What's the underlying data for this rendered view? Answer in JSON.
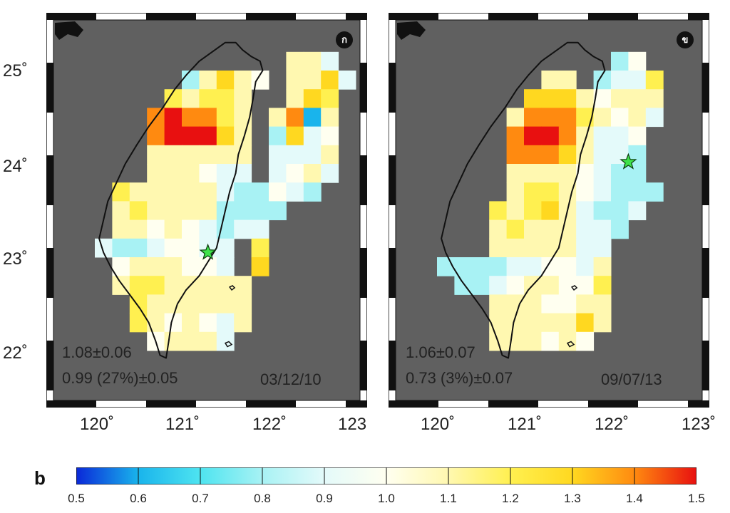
{
  "panels": [
    {
      "id": "a",
      "badge": "ก",
      "stat1": "1.08±0.06",
      "stat2": "0.99 (27%)±0.05",
      "date": "03/12/10",
      "epicenter": {
        "lon": 121.3,
        "lat": 23.05
      },
      "x_ticks": [
        "120˚",
        "121˚",
        "122˚",
        "123"
      ]
    },
    {
      "id": "b",
      "badge": "ข",
      "stat1": "1.06±0.07",
      "stat2": "0.73 (3%)±0.07",
      "date": "09/07/13",
      "epicenter": {
        "lon": 122.2,
        "lat": 24.02
      },
      "x_ticks": [
        "120˚",
        "121˚",
        "122˚",
        "123˚"
      ]
    }
  ],
  "y_ticks": [
    "25˚",
    "24˚",
    "23˚",
    "22˚"
  ],
  "colorbar": {
    "label": "b",
    "ticks": [
      "0.5",
      "0.6",
      "0.7",
      "0.8",
      "0.9",
      "1.0",
      "1.1",
      "1.2",
      "1.3",
      "1.4",
      "1.5"
    ],
    "colors": [
      "#0a28d8",
      "#19b4ec",
      "#4ee4f0",
      "#a8f2f4",
      "#e4fafa",
      "#fffff0",
      "#fff8b0",
      "#fff050",
      "#ffd820",
      "#ff8a10",
      "#e81010"
    ]
  }
}
